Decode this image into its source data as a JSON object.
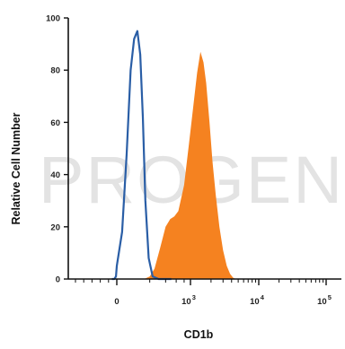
{
  "chart_data": {
    "type": "area",
    "xlabel": "CD1b",
    "ylabel": "Relative Cell Number",
    "ylim": [
      0,
      100
    ],
    "y_ticks": [
      "0",
      "20",
      "40",
      "60",
      "80",
      "100"
    ],
    "x_ticks": [
      {
        "base": "0",
        "exp": ""
      },
      {
        "base": "10",
        "exp": "3"
      },
      {
        "base": "10",
        "exp": "4"
      },
      {
        "base": "10",
        "exp": "5"
      }
    ],
    "x_scale": "biexponential",
    "watermark": "PROGEN",
    "colors": {
      "control": "#2a5ea6",
      "sample": "#f58220",
      "watermark": "#e3e3e3"
    },
    "series": [
      {
        "style": "line",
        "points": [
          [
            -120,
            0
          ],
          [
            -60,
            0
          ],
          [
            -20,
            1
          ],
          [
            0,
            5
          ],
          [
            20,
            18
          ],
          [
            40,
            48
          ],
          [
            60,
            80
          ],
          [
            80,
            92
          ],
          [
            100,
            95
          ],
          [
            120,
            86
          ],
          [
            140,
            62
          ],
          [
            160,
            30
          ],
          [
            190,
            8
          ],
          [
            230,
            1
          ],
          [
            300,
            0
          ],
          [
            500,
            0
          ]
        ]
      },
      {
        "style": "filled",
        "points": [
          [
            150,
            0
          ],
          [
            200,
            1
          ],
          [
            250,
            4
          ],
          [
            320,
            12
          ],
          [
            400,
            20
          ],
          [
            480,
            23
          ],
          [
            560,
            24
          ],
          [
            650,
            26
          ],
          [
            800,
            36
          ],
          [
            950,
            52
          ],
          [
            1100,
            66
          ],
          [
            1250,
            79
          ],
          [
            1400,
            87
          ],
          [
            1550,
            83
          ],
          [
            1700,
            75
          ],
          [
            1900,
            60
          ],
          [
            2100,
            45
          ],
          [
            2350,
            32
          ],
          [
            2650,
            20
          ],
          [
            3000,
            11
          ],
          [
            3400,
            5
          ],
          [
            3800,
            2
          ],
          [
            4200,
            0.5
          ],
          [
            4600,
            0
          ]
        ]
      }
    ]
  }
}
